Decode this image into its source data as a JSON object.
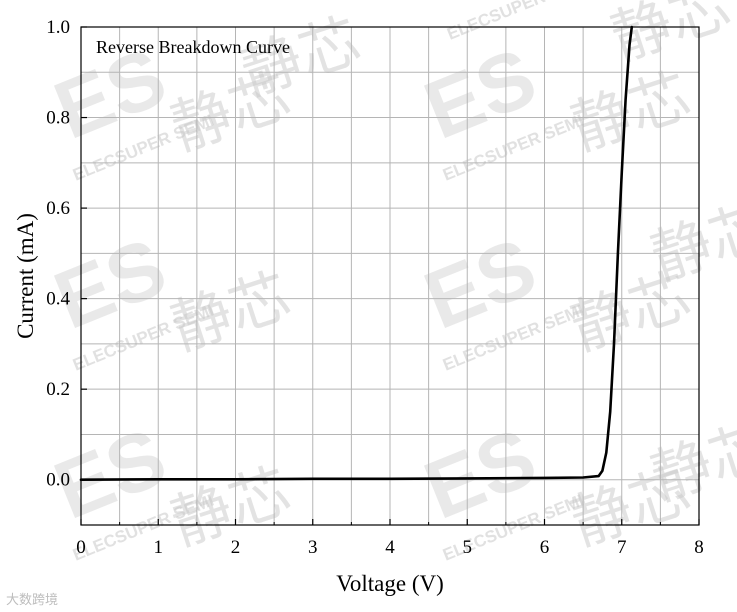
{
  "chart_data": {
    "type": "line",
    "title": "Reverse Breakdown Curve",
    "xlabel": "Voltage (V)",
    "ylabel": "Current (mA)",
    "xlim": [
      0,
      8
    ],
    "ylim": [
      -0.1,
      1.0
    ],
    "xticks": [
      0,
      1,
      2,
      3,
      4,
      5,
      6,
      7,
      8
    ],
    "yticks": [
      0.0,
      0.2,
      0.4,
      0.6,
      0.8,
      1.0
    ],
    "xtick_labels": [
      "0",
      "1",
      "2",
      "3",
      "4",
      "5",
      "6",
      "7",
      "8"
    ],
    "ytick_labels": [
      "0.0",
      "0.2",
      "0.4",
      "0.6",
      "0.8",
      "1.0"
    ],
    "grid": true,
    "series": [
      {
        "color": "#000000",
        "x": [
          0,
          1,
          2,
          3,
          4,
          5,
          6,
          6.5,
          6.7,
          6.75,
          6.8,
          6.85,
          6.9,
          6.95,
          7.0,
          7.05,
          7.1,
          7.13
        ],
        "y": [
          0.0,
          0.001,
          0.001,
          0.002,
          0.002,
          0.003,
          0.004,
          0.005,
          0.008,
          0.02,
          0.06,
          0.15,
          0.3,
          0.5,
          0.68,
          0.84,
          0.96,
          1.0
        ]
      }
    ]
  },
  "watermark": {
    "brand": "ELECSUPER SEMI",
    "logo": "ES",
    "chinese": "静芯",
    "corner_mark": "大数跨境",
    "color": "#c9c9c9"
  }
}
